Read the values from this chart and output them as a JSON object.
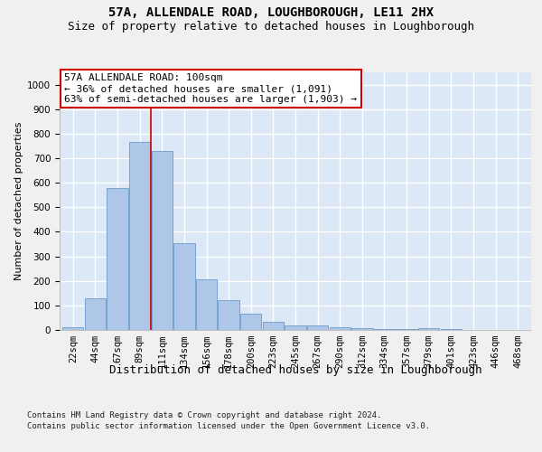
{
  "title": "57A, ALLENDALE ROAD, LOUGHBOROUGH, LE11 2HX",
  "subtitle": "Size of property relative to detached houses in Loughborough",
  "xlabel": "Distribution of detached houses by size in Loughborough",
  "ylabel": "Number of detached properties",
  "footer1": "Contains HM Land Registry data © Crown copyright and database right 2024.",
  "footer2": "Contains public sector information licensed under the Open Government Licence v3.0.",
  "bar_labels": [
    "22sqm",
    "44sqm",
    "67sqm",
    "89sqm",
    "111sqm",
    "134sqm",
    "156sqm",
    "178sqm",
    "200sqm",
    "223sqm",
    "245sqm",
    "267sqm",
    "290sqm",
    "312sqm",
    "334sqm",
    "357sqm",
    "379sqm",
    "401sqm",
    "423sqm",
    "446sqm",
    "468sqm"
  ],
  "bar_values": [
    10,
    128,
    578,
    765,
    728,
    355,
    207,
    120,
    65,
    35,
    17,
    17,
    10,
    8,
    5,
    5,
    8,
    5,
    0,
    0,
    0
  ],
  "bar_color": "#aec6e8",
  "bar_edge_color": "#5a8fc4",
  "ylim": [
    0,
    1050
  ],
  "yticks": [
    0,
    100,
    200,
    300,
    400,
    500,
    600,
    700,
    800,
    900,
    1000
  ],
  "property_line_x": 3.5,
  "property_line_color": "#cc0000",
  "annotation_text": "57A ALLENDALE ROAD: 100sqm\n← 36% of detached houses are smaller (1,091)\n63% of semi-detached houses are larger (1,903) →",
  "annotation_box_color": "#cc0000",
  "background_color": "#dce8f5",
  "grid_color": "#ffffff",
  "fig_bg_color": "#f0f0f0",
  "title_fontsize": 10,
  "subtitle_fontsize": 9,
  "xlabel_fontsize": 9,
  "ylabel_fontsize": 8,
  "tick_fontsize": 7.5,
  "annotation_fontsize": 8
}
